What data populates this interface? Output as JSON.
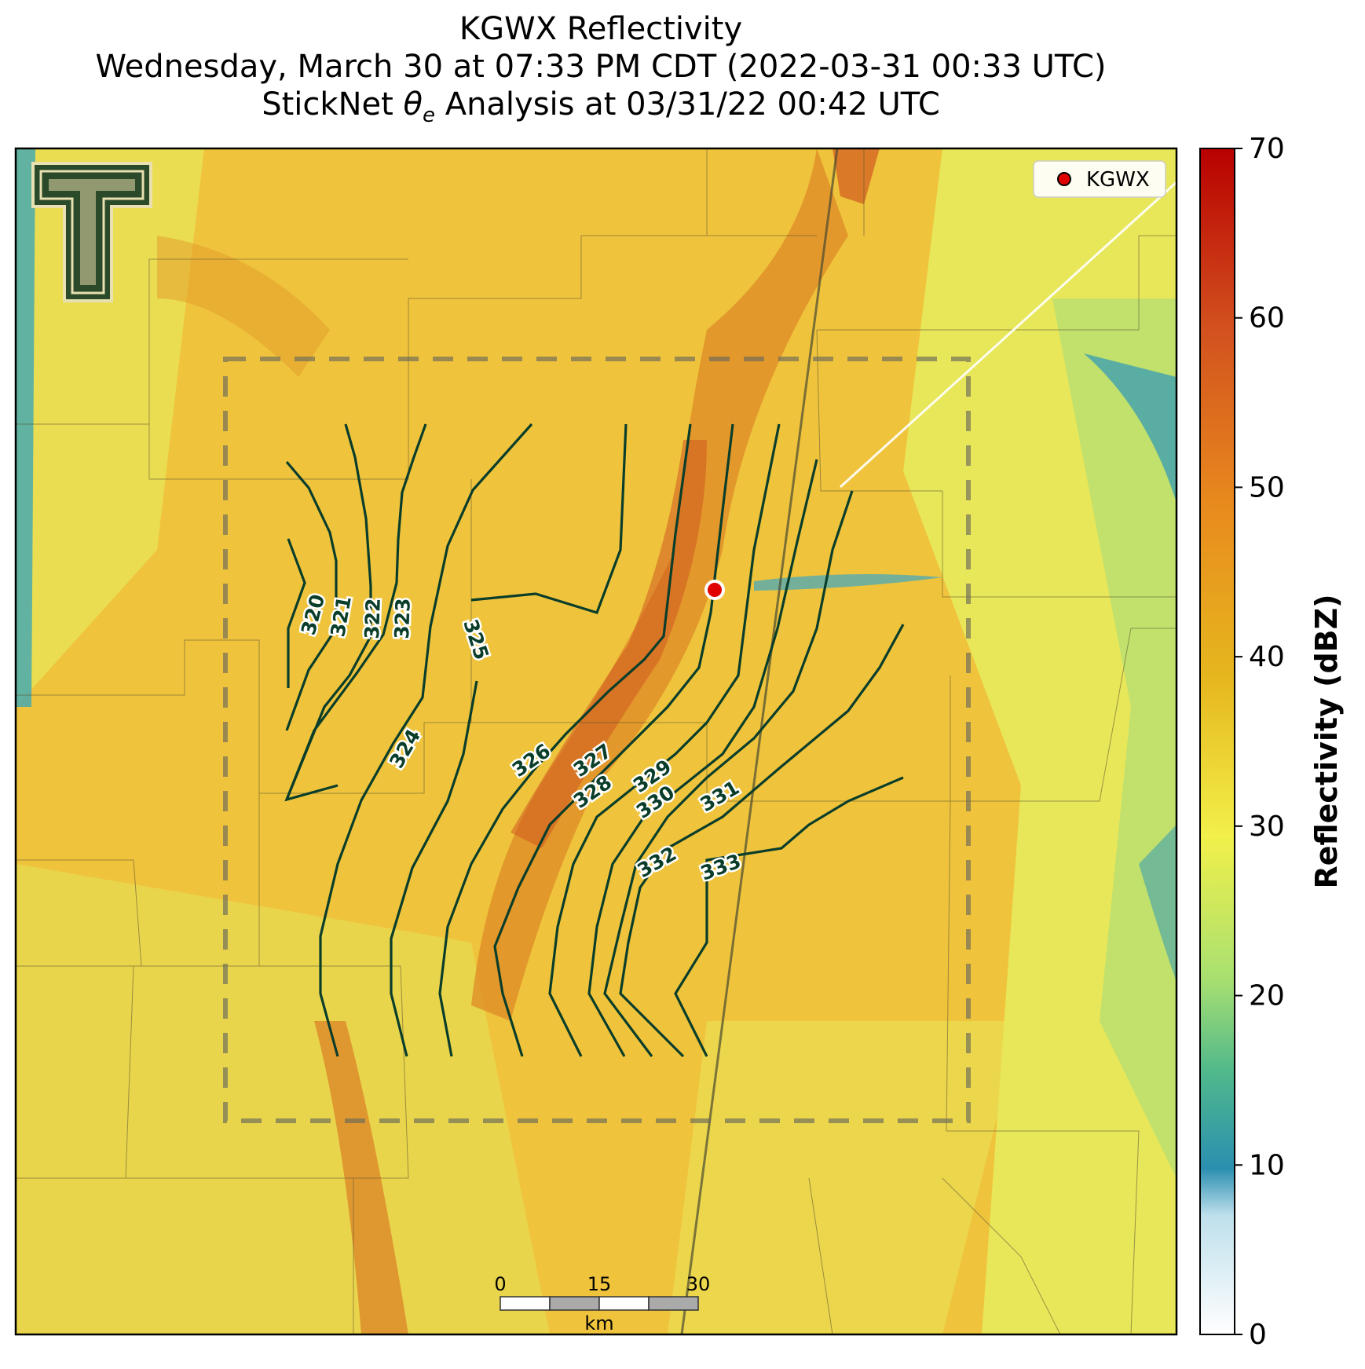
{
  "title": {
    "line1": "KGWX Reflectivity",
    "line2": "Wednesday, March 30 at 07:33 PM CDT (2022-03-31 00:33 UTC)",
    "line3_prefix": "StickNet ",
    "line3_theta": "θ",
    "line3_sub": "e",
    "line3_suffix": " Analysis at 03/31/22 00:42 UTC"
  },
  "legend": {
    "label": "KGWX"
  },
  "colorbar": {
    "label": "Reflectivity (dBZ)",
    "ticks": [
      "0",
      "10",
      "20",
      "30",
      "40",
      "50",
      "60",
      "70"
    ],
    "min": 0,
    "max": 70,
    "colors": [
      "#ffffff",
      "#cfe6f0",
      "#2b8fb0",
      "#4fb88c",
      "#a8e070",
      "#f2f04a",
      "#e6b81e",
      "#e88a1e",
      "#d2501e",
      "#b80000"
    ]
  },
  "contours": {
    "color": "#0a3d2a",
    "levels": [
      "320",
      "321",
      "322",
      "323",
      "324",
      "325",
      "326",
      "327",
      "328",
      "329",
      "330",
      "331",
      "332",
      "333"
    ]
  },
  "scale_bar": {
    "ticks": [
      "0",
      "15",
      "30"
    ],
    "unit": "km"
  },
  "colors": {
    "background_field": "#f0c03a",
    "hatch_box": "#6a6a5a",
    "radar_marker": "#e00000"
  }
}
